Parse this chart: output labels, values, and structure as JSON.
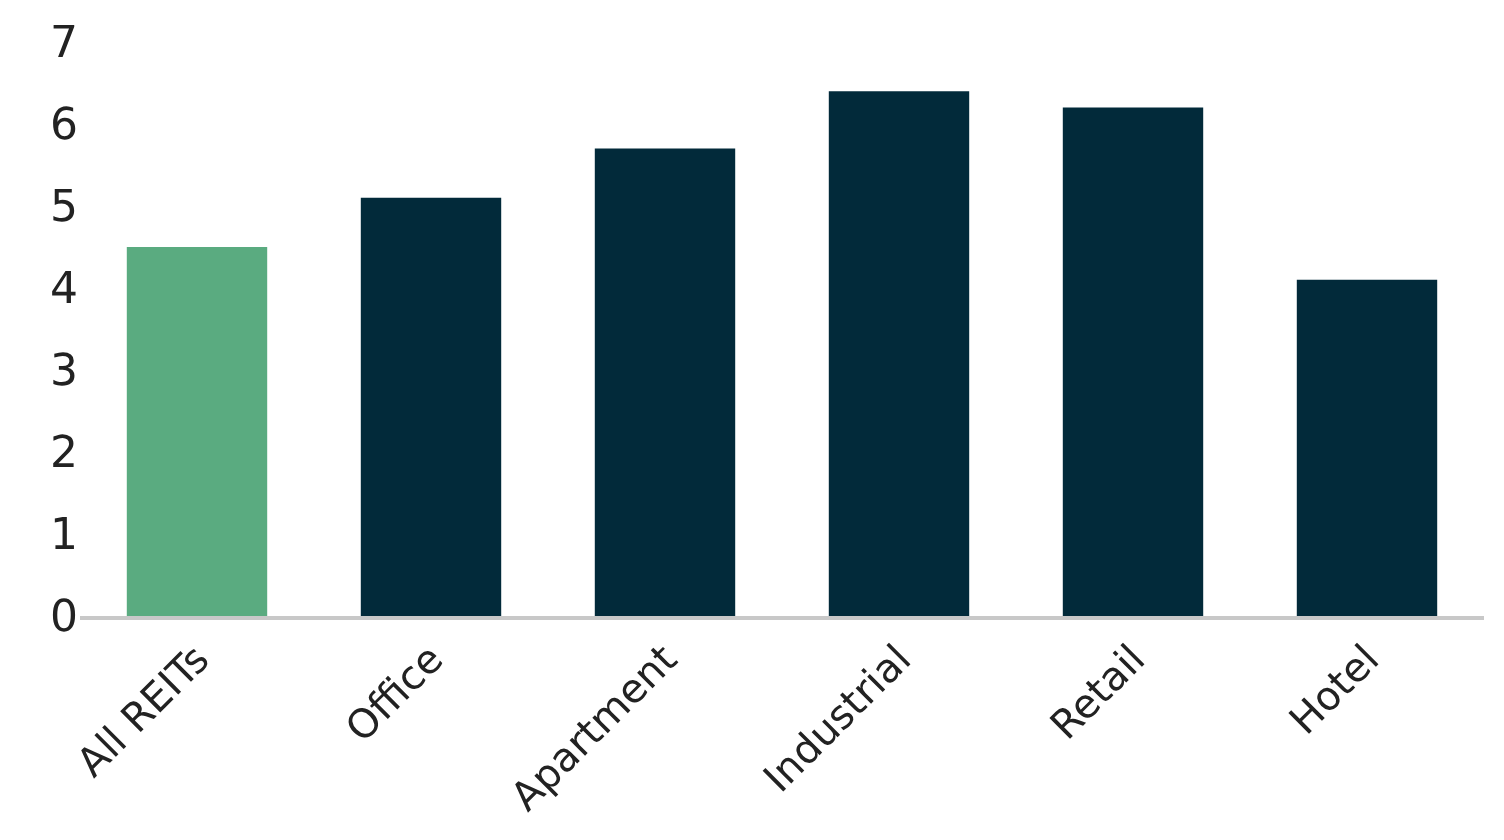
{
  "chart_data": {
    "type": "bar",
    "categories": [
      "All REITs",
      "Office",
      "Apartment",
      "Industrial",
      "Retail",
      "Hotel"
    ],
    "values": [
      4.5,
      5.1,
      5.7,
      6.4,
      6.2,
      4.1
    ],
    "colors": [
      "#5aab80",
      "#022a3a",
      "#022a3a",
      "#022a3a",
      "#022a3a",
      "#022a3a"
    ],
    "ylim": [
      0,
      7
    ],
    "yticks": [
      0,
      1,
      2,
      3,
      4,
      5,
      6,
      7
    ]
  }
}
